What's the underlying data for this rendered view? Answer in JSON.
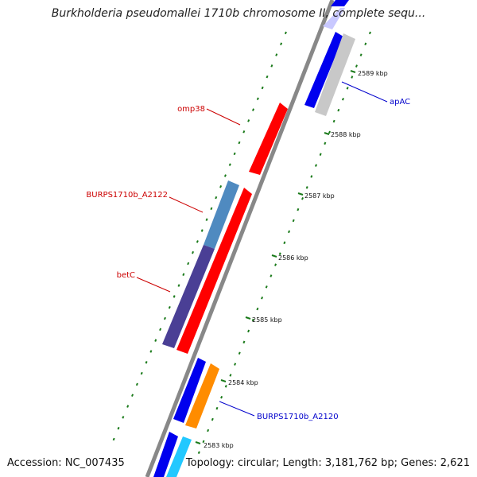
{
  "title": "Burkholderia pseudomallei 1710b chromosome II, complete sequ...",
  "accession_text": "Accession: NC_007435",
  "summary_text": "Topology: circular; Length: 3,181,762 bp; Genes: 2,621",
  "ruler_labels": [
    "2589 kbp",
    "2588 kbp",
    "2587 kbp",
    "2586 kbp",
    "2585 kbp",
    "2584 kbp",
    "2583 kbp"
  ],
  "gene_labels": [
    {
      "text": "apAC",
      "color": "#0000cc"
    },
    {
      "text": "omp38",
      "color": "#cc0000"
    },
    {
      "text": "BURPS1710b_A2122",
      "color": "#cc0000"
    },
    {
      "text": "betC",
      "color": "#cc0000"
    },
    {
      "text": "BURPS1710b_A2120",
      "color": "#0000cc"
    }
  ],
  "colors": {
    "red": "#ff0000",
    "blue": "#0000ee",
    "purple": "#4a3f95",
    "steelblue": "#4f8ac0",
    "orange": "#ff8c00",
    "gray": "#c8c8c8",
    "cyan": "#22c8ff",
    "lightblue": "#c8c8ff",
    "backbone": "#888888",
    "tick_green": "#1a7a1a"
  }
}
